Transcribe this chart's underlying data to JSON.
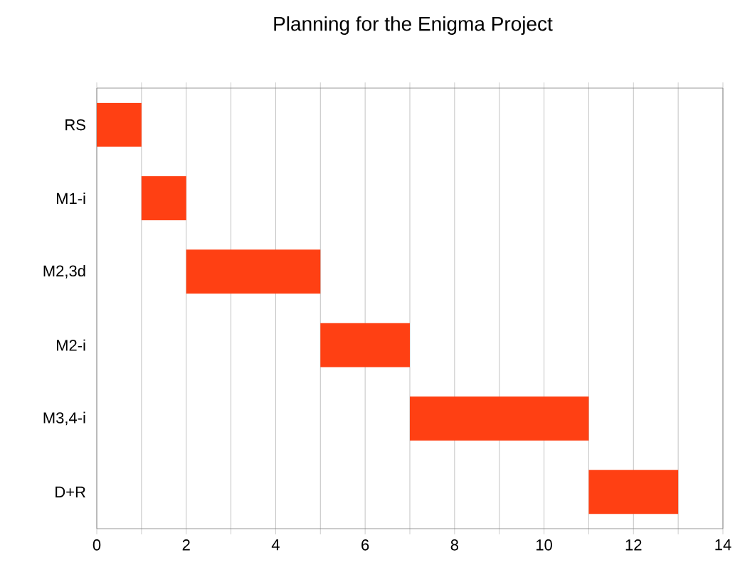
{
  "chart_data": {
    "type": "bar",
    "orientation": "horizontal",
    "title": "Planning for the Enigma Project",
    "categories": [
      "RS",
      "M1-i",
      "M2,3d",
      "M2-i",
      "M3,4-i",
      "D+R"
    ],
    "base": [
      0,
      1,
      2,
      5,
      7,
      11
    ],
    "values": [
      1,
      1,
      3,
      2,
      4,
      2
    ],
    "color": "#ff4013",
    "xlim": [
      0,
      14
    ],
    "xticks": [
      0,
      {
        "value": 1,
        "label": null
      },
      2,
      {
        "value": 3,
        "label": null
      },
      4,
      {
        "value": 5,
        "label": null
      },
      6,
      {
        "value": 7,
        "label": null
      },
      8,
      {
        "value": 9,
        "label": null
      },
      10,
      {
        "value": 11,
        "label": null
      },
      12,
      {
        "value": 13,
        "label": null
      },
      14
    ],
    "grid": "x"
  }
}
